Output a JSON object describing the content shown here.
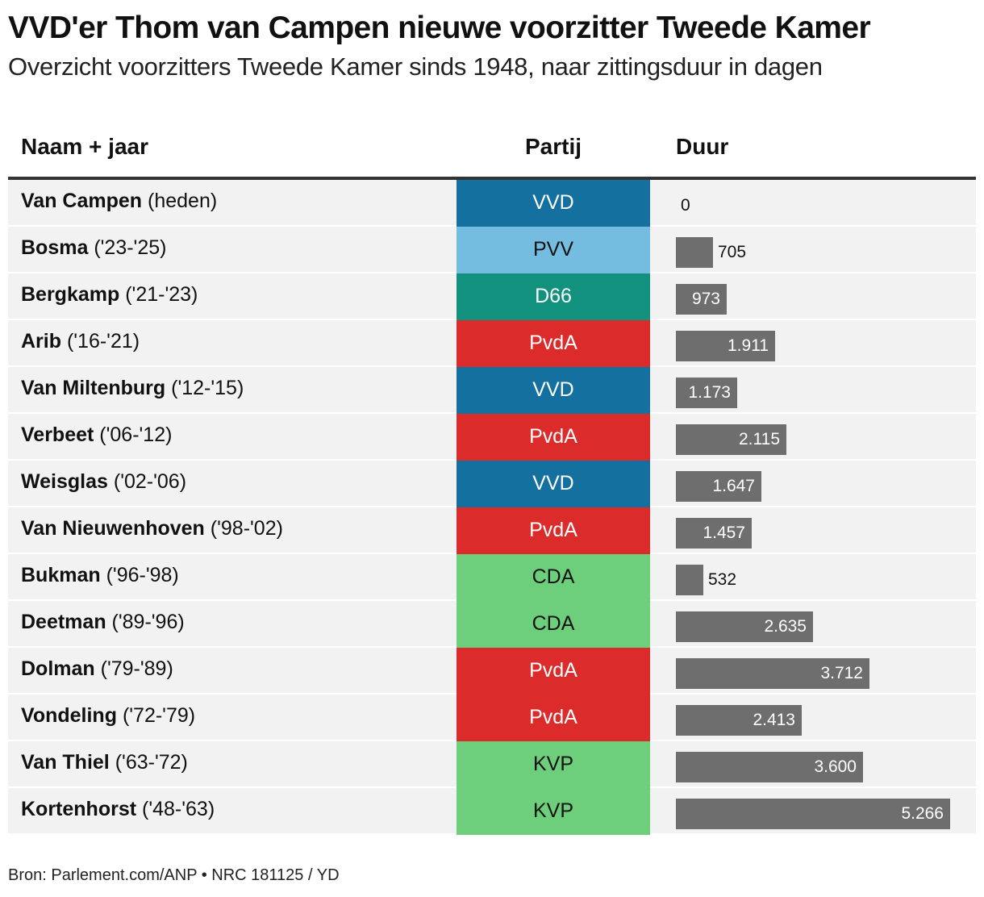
{
  "title": "VVD'er Thom van Campen nieuwe voorzitter Tweede Kamer",
  "subtitle": "Overzicht voorzitters Tweede Kamer sinds 1948, naar zittingsduur in dagen",
  "columns": {
    "name": "Naam + jaar",
    "party": "Partij",
    "duration": "Duur"
  },
  "source": "Bron: Parlement.com/ANP  •  NRC 181125 / YD",
  "party_colors": {
    "VVD": {
      "bg": "#14709f",
      "fg": "#ffffff"
    },
    "PVV": {
      "bg": "#74bde0",
      "fg": "#111111"
    },
    "D66": {
      "bg": "#12917f",
      "fg": "#ffffff"
    },
    "PvdA": {
      "bg": "#dc2b2b",
      "fg": "#ffffff"
    },
    "CDA": {
      "bg": "#6dcf7b",
      "fg": "#111111"
    },
    "KVP": {
      "bg": "#6dcf7b",
      "fg": "#111111"
    }
  },
  "bar_color": "#6e6e6e",
  "chart_data": {
    "type": "bar",
    "orientation": "horizontal",
    "title": "VVD'er Thom van Campen nieuwe voorzitter Tweede Kamer",
    "subtitle": "Overzicht voorzitters Tweede Kamer sinds 1948, naar zittingsduur in dagen",
    "categories": [
      "Van Campen",
      "Bosma",
      "Bergkamp",
      "Arib",
      "Van Miltenburg",
      "Verbeet",
      "Weisglas",
      "Van Nieuwenhoven",
      "Bukman",
      "Deetman",
      "Dolman",
      "Vondeling",
      "Van Thiel",
      "Kortenhorst"
    ],
    "values": [
      0,
      705,
      973,
      1911,
      1173,
      2115,
      1647,
      1457,
      532,
      2635,
      3712,
      2413,
      3600,
      5266
    ],
    "xlim": [
      0,
      5266
    ],
    "grid": false,
    "rows": [
      {
        "name": "Van Campen",
        "years": "(heden)",
        "party": "VVD",
        "days": 0,
        "label": "0"
      },
      {
        "name": "Bosma",
        "years": "('23-'25)",
        "party": "PVV",
        "days": 705,
        "label": "705"
      },
      {
        "name": "Bergkamp",
        "years": "('21-'23)",
        "party": "D66",
        "days": 973,
        "label": "973"
      },
      {
        "name": "Arib",
        "years": "('16-'21)",
        "party": "PvdA",
        "days": 1911,
        "label": "1.911"
      },
      {
        "name": "Van Miltenburg",
        "years": "('12-'15)",
        "party": "VVD",
        "days": 1173,
        "label": "1.173"
      },
      {
        "name": "Verbeet",
        "years": "('06-'12)",
        "party": "PvdA",
        "days": 2115,
        "label": "2.115"
      },
      {
        "name": "Weisglas",
        "years": "('02-'06)",
        "party": "VVD",
        "days": 1647,
        "label": "1.647"
      },
      {
        "name": "Van Nieuwenhoven",
        "years": "('98-'02)",
        "party": "PvdA",
        "days": 1457,
        "label": "1.457"
      },
      {
        "name": "Bukman",
        "years": "('96-'98)",
        "party": "CDA",
        "days": 532,
        "label": "532"
      },
      {
        "name": "Deetman",
        "years": "('89-'96)",
        "party": "CDA",
        "days": 2635,
        "label": "2.635"
      },
      {
        "name": "Dolman",
        "years": "('79-'89)",
        "party": "PvdA",
        "days": 3712,
        "label": "3.712"
      },
      {
        "name": "Vondeling",
        "years": "('72-'79)",
        "party": "PvdA",
        "days": 2413,
        "label": "2.413"
      },
      {
        "name": "Van Thiel",
        "years": "('63-'72)",
        "party": "KVP",
        "days": 3600,
        "label": "3.600"
      },
      {
        "name": "Kortenhorst",
        "years": "('48-'63)",
        "party": "KVP",
        "days": 5266,
        "label": "5.266"
      }
    ]
  }
}
